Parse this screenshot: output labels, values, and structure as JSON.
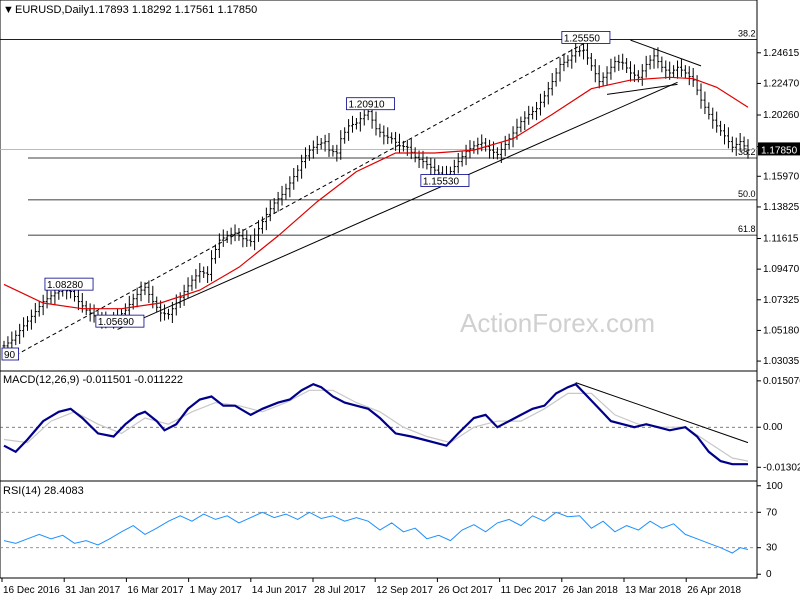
{
  "header": {
    "symbol": "EURUSD,Daily",
    "ohlc": "1.17893 1.18292 1.17561 1.17850",
    "macd_title": "MACD(12,26,9) -0.011501 -0.011222",
    "rsi_title": "RSI(14) 28.4083",
    "watermark": "ActionForex.com"
  },
  "colors": {
    "candles": "#000000",
    "ma": "#e00000",
    "macd_line": "#00008b",
    "macd_signal": "#c8c8c8",
    "rsi_line": "#1e90ff",
    "current_label_bg": "#000000"
  },
  "chart_data": [
    {
      "type": "line",
      "title": "EURUSD,Daily",
      "price_ticks": [
        "1.24615",
        "1.22470",
        "1.20260",
        "1.18050",
        "1.15970",
        "1.13825",
        "1.11615",
        "1.09470",
        "1.07325",
        "1.05180",
        "1.03035"
      ],
      "price_tick_values": [
        1.24615,
        1.2247,
        1.2026,
        1.1805,
        1.1597,
        1.13825,
        1.11615,
        1.0947,
        1.07325,
        1.0518,
        1.03035
      ],
      "ylim": [
        1.0255,
        1.2705
      ],
      "current_price": "1.17850",
      "x_labels": [
        "16 Dec 2016",
        "31 Jan 2017",
        "16 Mar 2017",
        "1 May 2017",
        "14 Jun 2017",
        "28 Jul 2017",
        "12 Sep 2017",
        "26 Oct 2017",
        "11 Dec 2017",
        "26 Jan 2018",
        "13 Mar 2018",
        "26 Apr 2018"
      ],
      "close_series": [
        [
          0,
          1.041
        ],
        [
          2,
          1.045
        ],
        [
          5,
          1.055
        ],
        [
          8,
          1.065
        ],
        [
          10,
          1.072
        ],
        [
          13,
          1.078
        ],
        [
          15,
          1.08
        ],
        [
          17,
          1.079
        ],
        [
          19,
          1.072
        ],
        [
          21,
          1.066
        ],
        [
          24,
          1.06
        ],
        [
          26,
          1.058
        ],
        [
          29,
          1.061
        ],
        [
          31,
          1.066
        ],
        [
          33,
          1.074
        ],
        [
          35,
          1.08
        ],
        [
          36,
          1.082
        ],
        [
          38,
          1.072
        ],
        [
          40,
          1.064
        ],
        [
          42,
          1.063
        ],
        [
          44,
          1.071
        ],
        [
          46,
          1.079
        ],
        [
          48,
          1.087
        ],
        [
          50,
          1.093
        ],
        [
          52,
          1.091
        ],
        [
          53,
          1.102
        ],
        [
          55,
          1.115
        ],
        [
          57,
          1.118
        ],
        [
          59,
          1.12
        ],
        [
          61,
          1.116
        ],
        [
          63,
          1.114
        ],
        [
          65,
          1.123
        ],
        [
          67,
          1.133
        ],
        [
          69,
          1.141
        ],
        [
          71,
          1.147
        ],
        [
          73,
          1.155
        ],
        [
          75,
          1.164
        ],
        [
          76,
          1.17
        ],
        [
          78,
          1.178
        ],
        [
          80,
          1.182
        ],
        [
          82,
          1.184
        ],
        [
          83,
          1.178
        ],
        [
          85,
          1.176
        ],
        [
          86,
          1.186
        ],
        [
          88,
          1.195
        ],
        [
          90,
          1.197
        ],
        [
          91,
          1.2
        ],
        [
          93,
          1.205
        ],
        [
          95,
          1.193
        ],
        [
          97,
          1.188
        ],
        [
          99,
          1.186
        ],
        [
          101,
          1.181
        ],
        [
          103,
          1.18
        ],
        [
          105,
          1.173
        ],
        [
          107,
          1.17
        ],
        [
          109,
          1.166
        ],
        [
          111,
          1.162
        ],
        [
          112,
          1.159
        ],
        [
          114,
          1.163
        ],
        [
          116,
          1.17
        ],
        [
          118,
          1.177
        ],
        [
          120,
          1.181
        ],
        [
          122,
          1.183
        ],
        [
          124,
          1.178
        ],
        [
          126,
          1.175
        ],
        [
          128,
          1.182
        ],
        [
          130,
          1.19
        ],
        [
          132,
          1.198
        ],
        [
          134,
          1.203
        ],
        [
          136,
          1.207
        ],
        [
          138,
          1.216
        ],
        [
          140,
          1.226
        ],
        [
          142,
          1.238
        ],
        [
          144,
          1.241
        ],
        [
          146,
          1.247
        ],
        [
          148,
          1.248
        ],
        [
          150,
          1.237
        ],
        [
          152,
          1.226
        ],
        [
          154,
          1.232
        ],
        [
          156,
          1.24
        ],
        [
          158,
          1.239
        ],
        [
          160,
          1.232
        ],
        [
          162,
          1.229
        ],
        [
          164,
          1.238
        ],
        [
          166,
          1.244
        ],
        [
          168,
          1.236
        ],
        [
          170,
          1.232
        ],
        [
          172,
          1.236
        ],
        [
          174,
          1.232
        ],
        [
          176,
          1.227
        ],
        [
          178,
          1.213
        ],
        [
          180,
          1.203
        ],
        [
          182,
          1.195
        ],
        [
          184,
          1.188
        ],
        [
          186,
          1.18
        ],
        [
          188,
          1.184
        ],
        [
          190,
          1.178
        ]
      ],
      "ma_series": [
        [
          0,
          1.084
        ],
        [
          10,
          1.071
        ],
        [
          20,
          1.067
        ],
        [
          30,
          1.067
        ],
        [
          40,
          1.071
        ],
        [
          50,
          1.08
        ],
        [
          60,
          1.096
        ],
        [
          70,
          1.118
        ],
        [
          80,
          1.142
        ],
        [
          90,
          1.163
        ],
        [
          100,
          1.176
        ],
        [
          110,
          1.176
        ],
        [
          120,
          1.178
        ],
        [
          130,
          1.186
        ],
        [
          140,
          1.203
        ],
        [
          150,
          1.221
        ],
        [
          160,
          1.227
        ],
        [
          170,
          1.229
        ],
        [
          176,
          1.228
        ],
        [
          182,
          1.222
        ],
        [
          190,
          1.208
        ]
      ],
      "annotations": [
        {
          "text": "1.25550",
          "x": 148,
          "y": 1.2555
        },
        {
          "text": "1.20910",
          "x": 93,
          "y": 1.2091
        },
        {
          "text": "1.15530",
          "x": 112,
          "y": 1.1553
        },
        {
          "text": "1.08280",
          "x": 16,
          "y": 1.0828
        },
        {
          "text": "1.05690",
          "x": 29,
          "y": 1.0569
        },
        {
          "text": "90",
          "x": 1,
          "y": 1.0339
        }
      ],
      "fib_levels": [
        {
          "label": "38.2",
          "value": 1.2555
        },
        {
          "label": "38.2",
          "value": 1.1725
        },
        {
          "label": "50.0",
          "value": 1.1432
        },
        {
          "label": "61.8",
          "value": 1.1185
        }
      ],
      "trendlines": [
        {
          "name": "lower-trendline",
          "from": [
            29,
            1.0525
          ],
          "to": [
            172,
            1.2255
          ]
        },
        {
          "name": "upper-channel",
          "from": [
            3,
            1.0345
          ],
          "to": [
            150,
            1.2555
          ]
        },
        {
          "name": "triangle-top",
          "from": [
            160,
            1.255
          ],
          "to": [
            178,
            1.237
          ]
        },
        {
          "name": "triangle-bottom",
          "from": [
            154,
            1.217
          ],
          "to": [
            172,
            1.224
          ]
        }
      ],
      "watermark": "ActionForex.com"
    },
    {
      "type": "line",
      "title": "MACD(12,26,9) -0.011501 -0.011222",
      "y_ticks": [
        "0.015076",
        "0.00",
        "-0.013021"
      ],
      "y_tick_values": [
        0.015076,
        0.0,
        -0.013021
      ],
      "ylim": [
        -0.0165,
        0.0173
      ],
      "macd_series": [
        [
          0,
          -0.006
        ],
        [
          3,
          -0.008
        ],
        [
          6,
          -0.004
        ],
        [
          10,
          0.002
        ],
        [
          14,
          0.005
        ],
        [
          17,
          0.006
        ],
        [
          20,
          0.003
        ],
        [
          24,
          -0.002
        ],
        [
          28,
          -0.003
        ],
        [
          31,
          0.001
        ],
        [
          34,
          0.004
        ],
        [
          36,
          0.005
        ],
        [
          39,
          0.002
        ],
        [
          41,
          -0.001
        ],
        [
          44,
          0.001
        ],
        [
          47,
          0.006
        ],
        [
          50,
          0.009
        ],
        [
          53,
          0.01
        ],
        [
          56,
          0.007
        ],
        [
          59,
          0.007
        ],
        [
          63,
          0.004
        ],
        [
          66,
          0.006
        ],
        [
          70,
          0.008
        ],
        [
          73,
          0.009
        ],
        [
          76,
          0.012
        ],
        [
          79,
          0.014
        ],
        [
          81,
          0.013
        ],
        [
          84,
          0.01
        ],
        [
          87,
          0.008
        ],
        [
          90,
          0.007
        ],
        [
          93,
          0.006
        ],
        [
          96,
          0.003
        ],
        [
          100,
          -0.002
        ],
        [
          104,
          -0.003
        ],
        [
          107,
          -0.004
        ],
        [
          110,
          -0.005
        ],
        [
          113,
          -0.006
        ],
        [
          116,
          -0.002
        ],
        [
          120,
          0.003
        ],
        [
          123,
          0.004
        ],
        [
          126,
          0.0
        ],
        [
          129,
          0.002
        ],
        [
          132,
          0.004
        ],
        [
          135,
          0.006
        ],
        [
          138,
          0.007
        ],
        [
          141,
          0.011
        ],
        [
          144,
          0.013
        ],
        [
          146,
          0.014
        ],
        [
          149,
          0.01
        ],
        [
          152,
          0.006
        ],
        [
          155,
          0.002
        ],
        [
          158,
          0.001
        ],
        [
          161,
          0.0
        ],
        [
          164,
          0.001
        ],
        [
          167,
          0.0
        ],
        [
          170,
          -0.001
        ],
        [
          174,
          0.0
        ],
        [
          177,
          -0.003
        ],
        [
          180,
          -0.008
        ],
        [
          183,
          -0.011
        ],
        [
          186,
          -0.012
        ],
        [
          190,
          -0.012
        ]
      ],
      "signal_series": [
        [
          0,
          -0.004
        ],
        [
          6,
          -0.005
        ],
        [
          12,
          0.002
        ],
        [
          18,
          0.005
        ],
        [
          24,
          0.001
        ],
        [
          30,
          -0.002
        ],
        [
          36,
          0.003
        ],
        [
          42,
          0.001
        ],
        [
          48,
          0.005
        ],
        [
          54,
          0.008
        ],
        [
          60,
          0.007
        ],
        [
          66,
          0.005
        ],
        [
          72,
          0.008
        ],
        [
          78,
          0.012
        ],
        [
          84,
          0.012
        ],
        [
          90,
          0.008
        ],
        [
          96,
          0.005
        ],
        [
          102,
          0.0
        ],
        [
          108,
          -0.003
        ],
        [
          114,
          -0.005
        ],
        [
          120,
          0.0
        ],
        [
          126,
          0.002
        ],
        [
          132,
          0.002
        ],
        [
          138,
          0.006
        ],
        [
          144,
          0.011
        ],
        [
          150,
          0.011
        ],
        [
          156,
          0.004
        ],
        [
          162,
          0.001
        ],
        [
          168,
          0.0
        ],
        [
          174,
          0.0
        ],
        [
          180,
          -0.005
        ],
        [
          186,
          -0.01
        ],
        [
          190,
          -0.011
        ]
      ],
      "trendline": {
        "from": [
          146,
          0.0145
        ],
        "to": [
          190,
          -0.005
        ]
      }
    },
    {
      "type": "line",
      "title": "RSI(14) 28.4083",
      "y_ticks": [
        "100",
        "70",
        "30",
        "0"
      ],
      "y_tick_values": [
        100,
        70,
        30,
        0
      ],
      "ylim": [
        -2,
        102
      ],
      "rsi_series": [
        [
          0,
          38
        ],
        [
          3,
          35
        ],
        [
          6,
          40
        ],
        [
          9,
          45
        ],
        [
          12,
          40
        ],
        [
          15,
          44
        ],
        [
          18,
          35
        ],
        [
          21,
          38
        ],
        [
          24,
          33
        ],
        [
          27,
          40
        ],
        [
          30,
          48
        ],
        [
          33,
          55
        ],
        [
          36,
          45
        ],
        [
          39,
          52
        ],
        [
          42,
          60
        ],
        [
          45,
          66
        ],
        [
          48,
          60
        ],
        [
          51,
          68
        ],
        [
          54,
          62
        ],
        [
          57,
          66
        ],
        [
          60,
          58
        ],
        [
          63,
          64
        ],
        [
          66,
          70
        ],
        [
          69,
          64
        ],
        [
          72,
          68
        ],
        [
          75,
          62
        ],
        [
          78,
          70
        ],
        [
          81,
          63
        ],
        [
          84,
          66
        ],
        [
          87,
          60
        ],
        [
          90,
          64
        ],
        [
          93,
          60
        ],
        [
          96,
          50
        ],
        [
          99,
          58
        ],
        [
          102,
          48
        ],
        [
          105,
          52
        ],
        [
          108,
          40
        ],
        [
          111,
          44
        ],
        [
          114,
          38
        ],
        [
          117,
          50
        ],
        [
          120,
          56
        ],
        [
          123,
          48
        ],
        [
          126,
          58
        ],
        [
          129,
          62
        ],
        [
          132,
          55
        ],
        [
          135,
          66
        ],
        [
          138,
          60
        ],
        [
          141,
          70
        ],
        [
          144,
          65
        ],
        [
          147,
          66
        ],
        [
          150,
          52
        ],
        [
          153,
          60
        ],
        [
          156,
          48
        ],
        [
          159,
          55
        ],
        [
          162,
          50
        ],
        [
          165,
          60
        ],
        [
          168,
          52
        ],
        [
          171,
          57
        ],
        [
          174,
          45
        ],
        [
          177,
          40
        ],
        [
          180,
          35
        ],
        [
          183,
          30
        ],
        [
          186,
          24
        ],
        [
          188,
          30
        ],
        [
          190,
          28
        ]
      ]
    }
  ]
}
